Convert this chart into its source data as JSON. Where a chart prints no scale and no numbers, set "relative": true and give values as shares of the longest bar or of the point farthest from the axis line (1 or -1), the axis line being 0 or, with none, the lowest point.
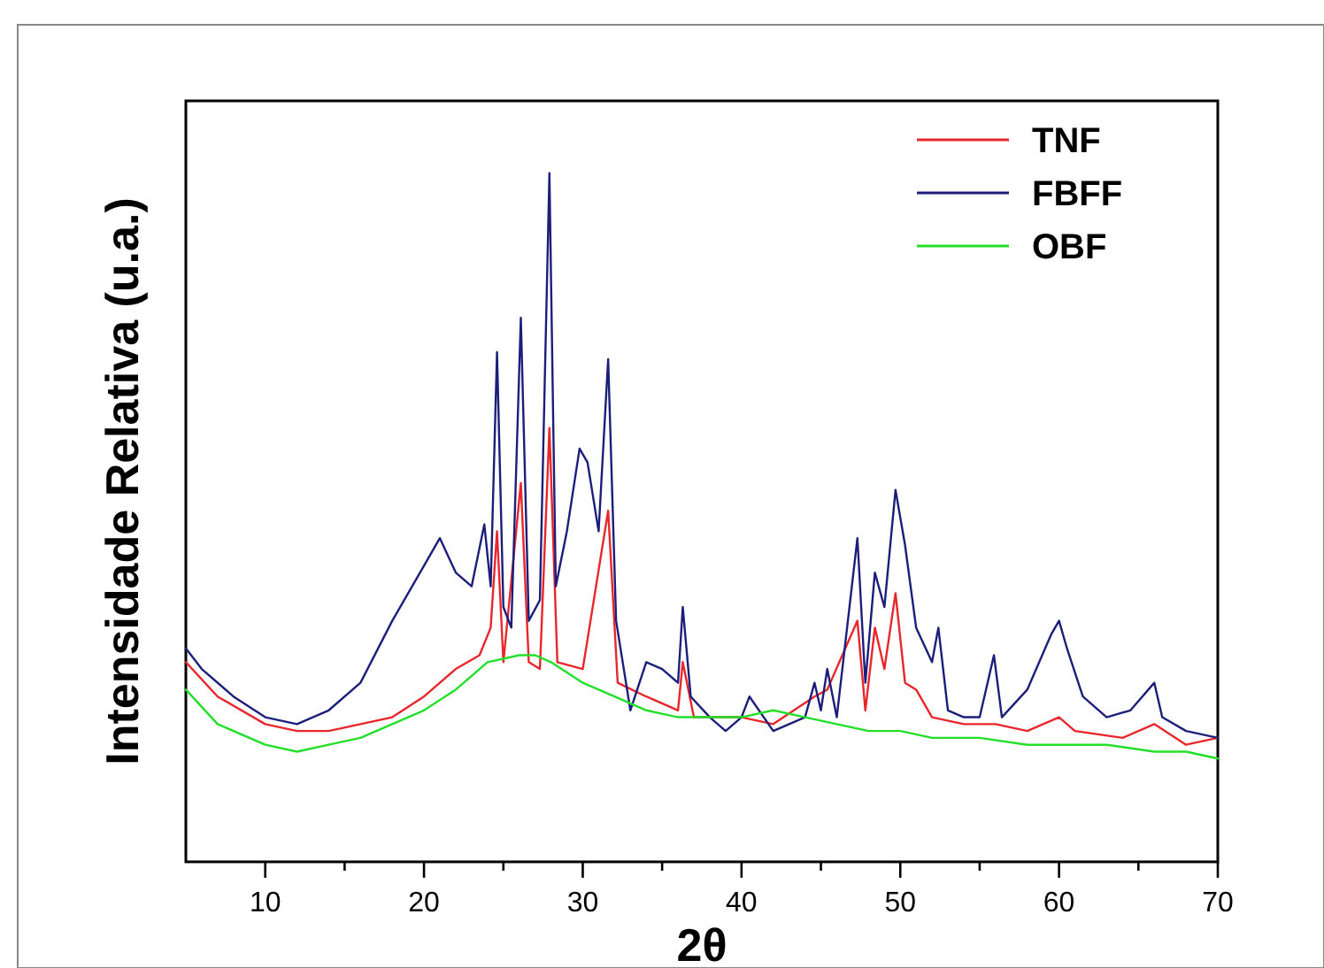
{
  "chart_data": {
    "type": "line",
    "xlabel": "2θ",
    "ylabel": "Intensidade Relativa (u.a.)",
    "relative": true,
    "xlim": [
      5,
      70
    ],
    "xticks": [
      10,
      {
        "value": 15,
        "label": null
      },
      20,
      {
        "value": 25,
        "label": null
      },
      30,
      {
        "value": 35,
        "label": null
      },
      40,
      {
        "value": 45,
        "label": null
      },
      50,
      {
        "value": 55,
        "label": null
      },
      60,
      {
        "value": 65,
        "label": null
      },
      70
    ],
    "legend": "top right",
    "grid": false,
    "line_style": "solid",
    "marker": "none",
    "series": [
      {
        "name": "TNF",
        "color": "#e8262b",
        "x": [
          5,
          7,
          10,
          12,
          14,
          16,
          18,
          20,
          22,
          23.5,
          24.2,
          24.6,
          25,
          26.1,
          26.6,
          27.3,
          27.9,
          28.4,
          30,
          31.6,
          32.2,
          34,
          36,
          36.3,
          37,
          40,
          42,
          44.6,
          45.4,
          47.3,
          47.8,
          48.4,
          49,
          49.7,
          50.3,
          51,
          52,
          54,
          56,
          58,
          60,
          61,
          64,
          66,
          68,
          70
        ],
        "values": [
          0.29,
          0.24,
          0.2,
          0.19,
          0.19,
          0.2,
          0.21,
          0.24,
          0.28,
          0.3,
          0.34,
          0.48,
          0.29,
          0.55,
          0.29,
          0.28,
          0.63,
          0.29,
          0.28,
          0.51,
          0.26,
          0.24,
          0.22,
          0.29,
          0.21,
          0.21,
          0.2,
          0.24,
          0.25,
          0.35,
          0.22,
          0.34,
          0.28,
          0.39,
          0.26,
          0.25,
          0.21,
          0.2,
          0.2,
          0.19,
          0.21,
          0.19,
          0.18,
          0.2,
          0.17,
          0.18
        ]
      },
      {
        "name": "FBFF",
        "color": "#1c1f7a",
        "x": [
          5,
          6,
          8,
          10,
          12,
          14,
          16,
          18,
          20,
          21,
          22,
          23,
          23.8,
          24.2,
          24.6,
          25,
          25.5,
          26.1,
          26.6,
          27.3,
          27.9,
          28.3,
          29,
          29.8,
          30.3,
          31,
          31.6,
          32.1,
          33,
          34,
          35,
          36,
          36.3,
          36.8,
          38,
          39,
          40,
          40.5,
          42,
          44,
          44.6,
          45,
          45.4,
          46,
          47.3,
          47.8,
          48.4,
          49,
          49.7,
          50.3,
          51,
          52,
          52.4,
          53,
          54,
          55,
          55.9,
          56.4,
          58,
          59.5,
          60,
          60.5,
          61.5,
          63,
          64.5,
          66,
          66.5,
          68,
          70
        ],
        "values": [
          0.31,
          0.28,
          0.24,
          0.21,
          0.2,
          0.22,
          0.26,
          0.35,
          0.43,
          0.47,
          0.42,
          0.4,
          0.49,
          0.4,
          0.74,
          0.37,
          0.34,
          0.79,
          0.35,
          0.38,
          1,
          0.4,
          0.48,
          0.6,
          0.58,
          0.48,
          0.73,
          0.35,
          0.22,
          0.29,
          0.28,
          0.26,
          0.37,
          0.24,
          0.21,
          0.19,
          0.21,
          0.24,
          0.19,
          0.21,
          0.26,
          0.22,
          0.28,
          0.21,
          0.47,
          0.26,
          0.42,
          0.37,
          0.54,
          0.46,
          0.34,
          0.29,
          0.34,
          0.22,
          0.21,
          0.21,
          0.3,
          0.21,
          0.25,
          0.33,
          0.35,
          0.31,
          0.24,
          0.21,
          0.22,
          0.26,
          0.21,
          0.19,
          0.18
        ]
      },
      {
        "name": "OBF",
        "color": "#22e02a",
        "x": [
          5,
          7,
          10,
          12,
          14,
          16,
          18,
          20,
          22,
          24,
          26,
          27,
          28,
          30,
          32,
          34,
          36,
          38,
          40,
          42,
          44,
          46,
          48,
          50,
          52,
          55,
          58,
          60,
          63,
          66,
          68,
          70
        ],
        "values": [
          0.25,
          0.2,
          0.17,
          0.16,
          0.17,
          0.18,
          0.2,
          0.22,
          0.25,
          0.29,
          0.3,
          0.3,
          0.29,
          0.26,
          0.24,
          0.22,
          0.21,
          0.21,
          0.21,
          0.22,
          0.21,
          0.2,
          0.19,
          0.19,
          0.18,
          0.18,
          0.17,
          0.17,
          0.17,
          0.16,
          0.16,
          0.15
        ]
      }
    ]
  }
}
